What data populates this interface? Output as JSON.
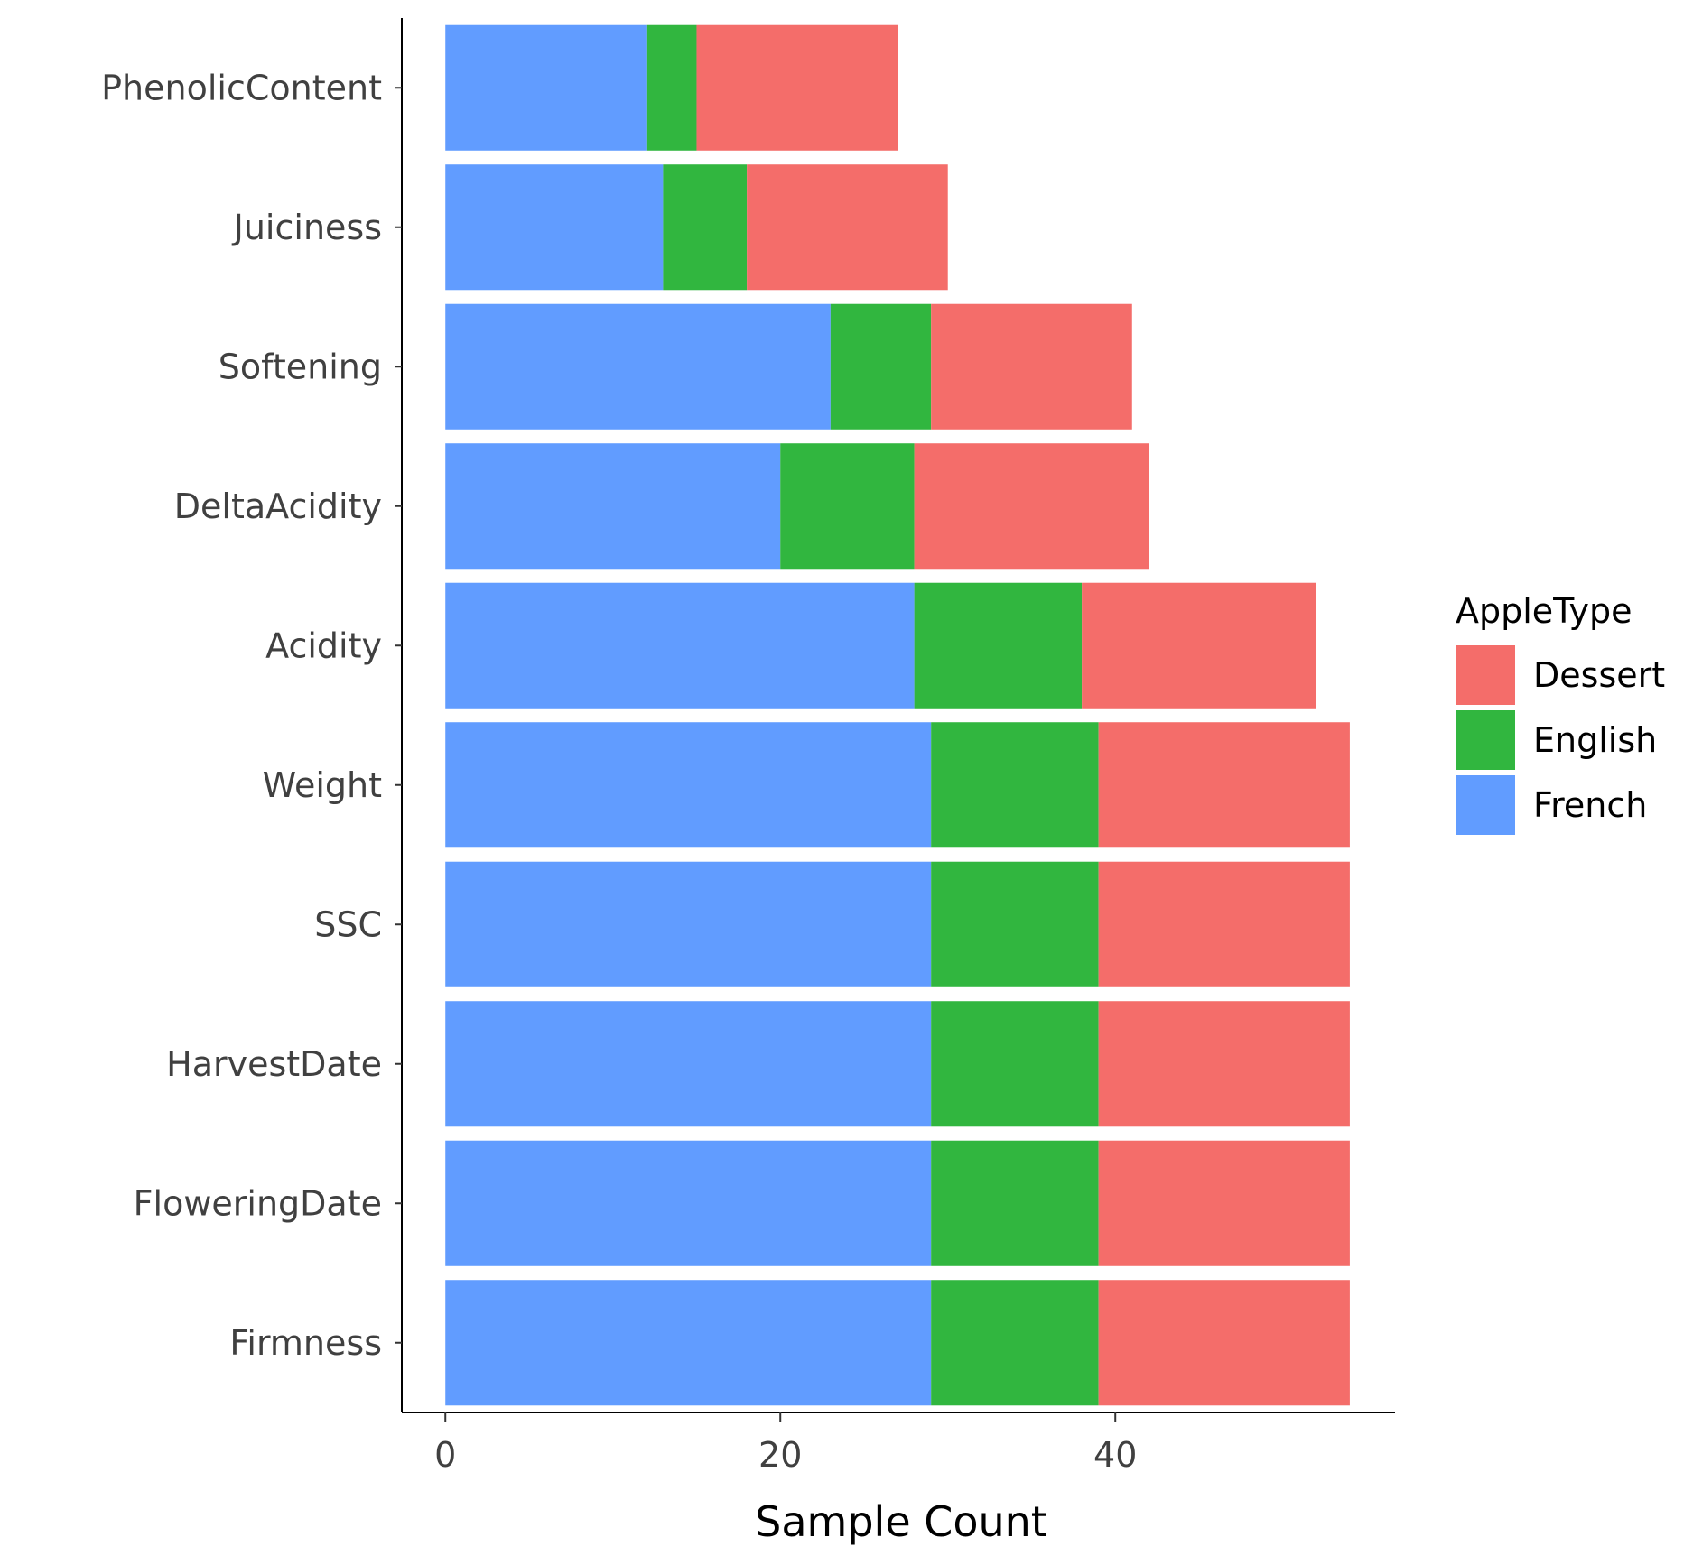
{
  "chart_data": {
    "type": "bar",
    "orientation": "horizontal",
    "stacked": true,
    "categories": [
      "PhenolicContent",
      "Juiciness",
      "Softening",
      "DeltaAcidity",
      "Acidity",
      "Weight",
      "SSC",
      "HarvestDate",
      "FloweringDate",
      "Firmness"
    ],
    "series": [
      {
        "name": "French",
        "color": "#619CFF",
        "values": [
          12,
          13,
          23,
          20,
          28,
          29,
          29,
          29,
          29,
          29
        ]
      },
      {
        "name": "English",
        "color": "#31B63F",
        "values": [
          3,
          5,
          6,
          8,
          10,
          10,
          10,
          10,
          10,
          10
        ]
      },
      {
        "name": "Dessert",
        "color": "#F46D6A",
        "values": [
          12,
          12,
          12,
          14,
          14,
          15,
          15,
          15,
          15,
          15
        ]
      }
    ],
    "xlabel": "Sample Count",
    "ylabel": "",
    "xlim": [
      -2.6,
      56.7
    ],
    "xticks": [
      0,
      20,
      40
    ],
    "grid": false,
    "legend": {
      "title": "AppleType",
      "position": "right",
      "order": [
        "Dessert",
        "English",
        "French"
      ]
    }
  }
}
